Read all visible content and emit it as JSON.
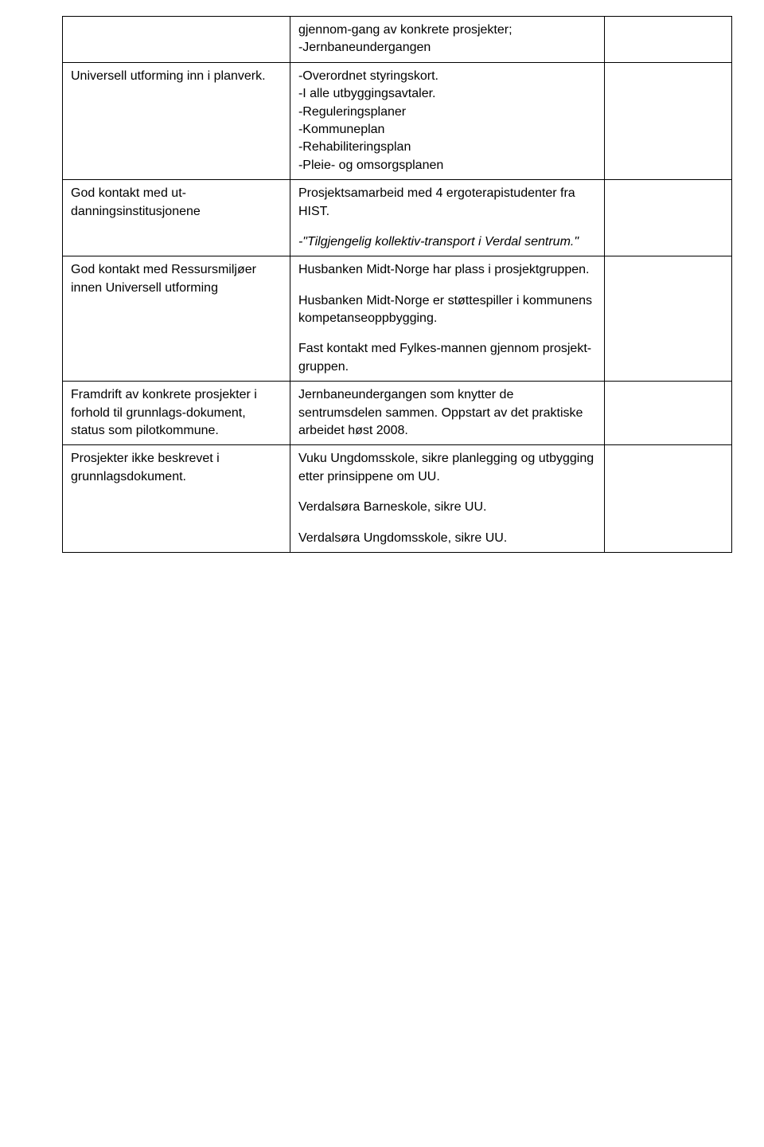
{
  "table": {
    "rows": [
      {
        "col1": "",
        "col2_paras": [
          {
            "text": "gjennom-gang av konkrete prosjekter;\n-Jernbaneundergangen"
          }
        ],
        "col3": ""
      },
      {
        "col1": "Universell utforming inn i planverk.",
        "col2_paras": [
          {
            "text": "-Overordnet  styringskort.\n-I alle utbyggingsavtaler.\n-Reguleringsplaner\n-Kommuneplan\n-Rehabiliteringsplan\n-Pleie- og omsorgsplanen"
          }
        ],
        "col3": ""
      },
      {
        "col1": "God kontakt med ut-danningsinstitusjonene",
        "col2_paras": [
          {
            "text": "Prosjektsamarbeid med 4 ergoterapistudenter fra HIST."
          },
          {
            "text": "-\"Tilgjengelig kollektiv-transport i Verdal sentrum.\"",
            "italic": true
          }
        ],
        "col3": ""
      },
      {
        "col1": "God kontakt med Ressursmiljøer innen Universell utforming",
        "col2_paras": [
          {
            "text": "Husbanken Midt-Norge har plass i prosjektgruppen."
          },
          {
            "text": "Husbanken Midt-Norge er støttespiller i kommunens kompetanseoppbygging."
          },
          {
            "text": "Fast kontakt med Fylkes-mannen gjennom prosjekt-gruppen."
          }
        ],
        "col3": ""
      },
      {
        "col1": "Framdrift av konkrete prosjekter i forhold til grunnlags-dokument, status som pilotkommune.",
        "col2_paras": [
          {
            "text": "Jernbaneundergangen som knytter de sentrumsdelen sammen. Oppstart av det praktiske arbeidet høst 2008."
          }
        ],
        "col3": ""
      },
      {
        "col1": "Prosjekter ikke beskrevet i grunnlagsdokument.",
        "col2_paras": [
          {
            "text": "Vuku Ungdomsskole, sikre planlegging og utbygging etter prinsippene om UU."
          },
          {
            "text": "Verdalsøra Barneskole, sikre UU."
          },
          {
            "text": "Verdalsøra Ungdomsskole, sikre UU."
          }
        ],
        "col3": ""
      }
    ]
  }
}
